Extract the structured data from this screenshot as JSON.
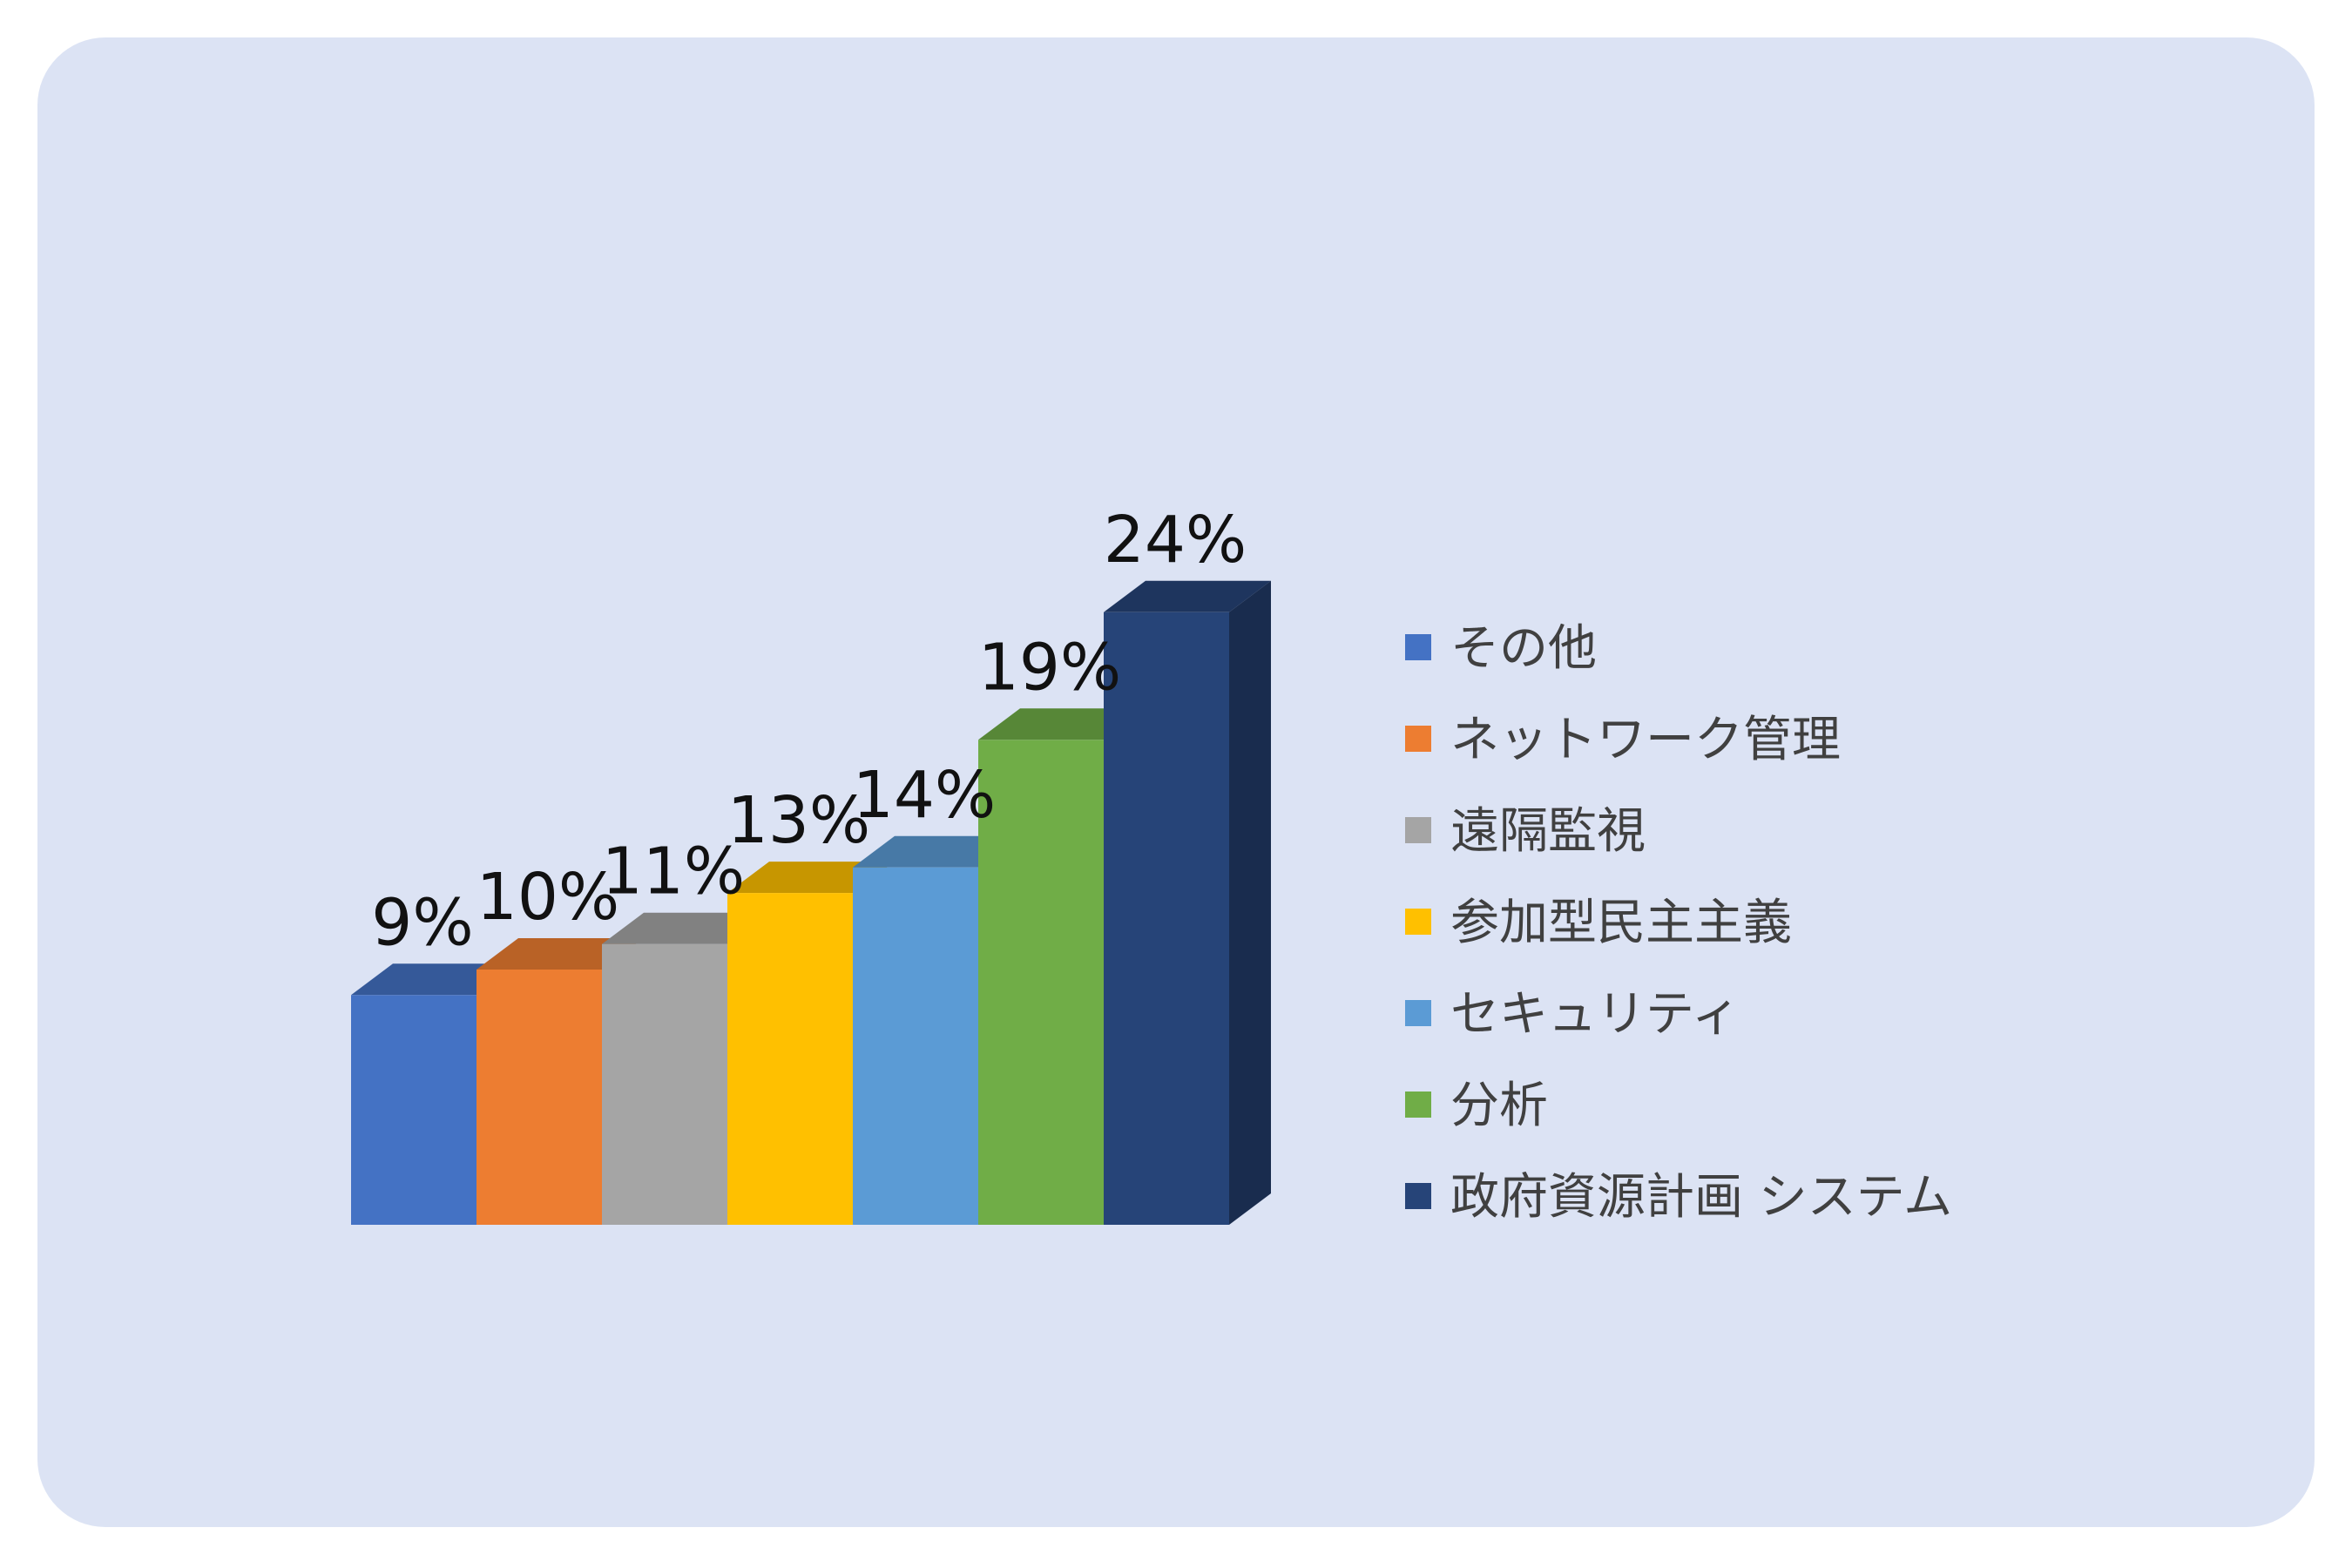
{
  "chart_data": {
    "type": "bar",
    "style": "3d-column",
    "categories": [
      "その他",
      "ネットワーク管理",
      "遠隔監視",
      "参加型民主主義",
      "セキュリティ",
      "分析",
      "政府資源計画 システム"
    ],
    "values": [
      9,
      10,
      11,
      13,
      14,
      19,
      24
    ],
    "value_labels": [
      "9%",
      "10%",
      "11%",
      "13%",
      "14%",
      "19%",
      "24%"
    ],
    "unit": "%",
    "title": "",
    "xlabel": "",
    "ylabel": "",
    "grid": false,
    "axes_visible": false,
    "legend_position": "right",
    "colors": [
      "#4472c4",
      "#ed7d31",
      "#a5a5a5",
      "#ffc000",
      "#5b9bd5",
      "#70ad47",
      "#264478"
    ],
    "background_color": "#dce3f4"
  }
}
